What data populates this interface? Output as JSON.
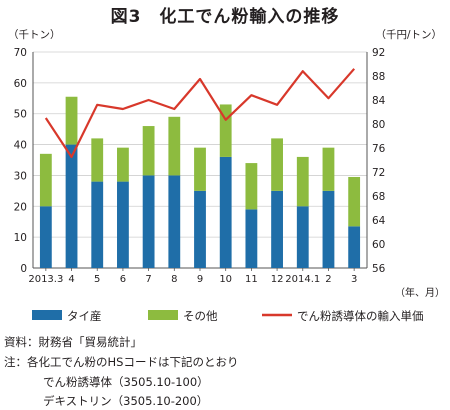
{
  "title": "図3　化工でん粉輸入の推移",
  "chart_data": {
    "type": "bar+line",
    "left_unit": "（千トン）",
    "right_unit": "（千円/トン）",
    "x_unit": "（年、月）",
    "categories": [
      "2013.3",
      "4",
      "5",
      "6",
      "7",
      "8",
      "9",
      "10",
      "11",
      "12",
      "2014.1",
      "2",
      "3"
    ],
    "series": [
      {
        "name": "タイ産",
        "type": "bar",
        "axis": "left",
        "color": "#1f6ea8",
        "values": [
          20,
          40,
          28,
          28,
          30,
          30,
          25,
          36,
          19,
          25,
          20,
          25,
          13.5
        ]
      },
      {
        "name": "その他",
        "type": "bar",
        "axis": "left",
        "color": "#8dbb3f",
        "values": [
          17,
          15.5,
          14,
          11,
          16,
          19,
          14,
          17,
          15,
          17,
          16,
          14,
          16
        ]
      },
      {
        "name": "でん粉誘導体の輸入単価",
        "type": "line",
        "axis": "right",
        "color": "#d8382b",
        "values": [
          81,
          74.5,
          83.2,
          82.5,
          84,
          82.5,
          87.5,
          80.7,
          84.8,
          83.2,
          88.8,
          84.3,
          89.2
        ]
      }
    ],
    "left_axis": {
      "min": 0,
      "max": 70,
      "ticks": [
        "0",
        "10",
        "20",
        "30",
        "40",
        "50",
        "60",
        "70"
      ]
    },
    "right_axis": {
      "min": 56,
      "max": 92,
      "ticks": [
        "56",
        "60",
        "64",
        "68",
        "72",
        "76",
        "80",
        "84",
        "88",
        "92"
      ]
    },
    "grid": true,
    "legend_position": "bottom"
  },
  "notes": {
    "source": "資料：財務省「貿易統計」",
    "note1": "注：各化工でん粉のHSコードは下記のとおり",
    "note2": "でん粉誘導体（3505.10-100）",
    "note3": "デキストリン（3505.10-200）"
  }
}
